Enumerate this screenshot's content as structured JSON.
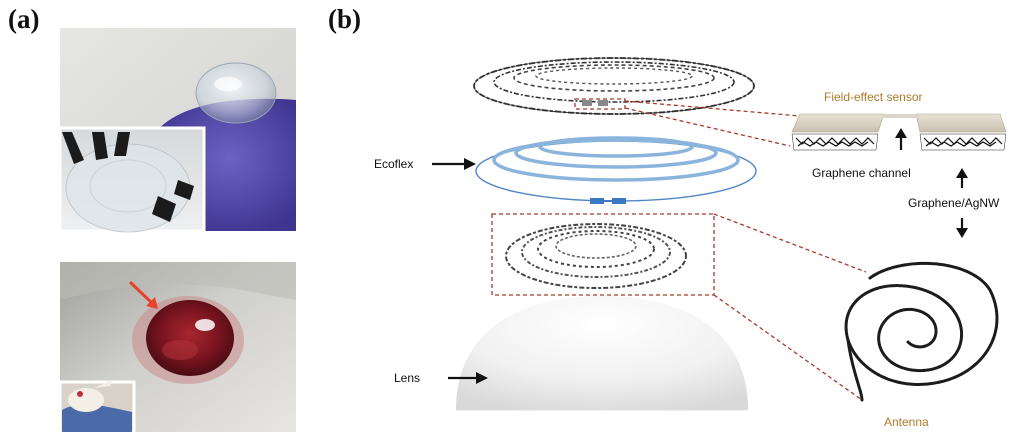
{
  "panels": {
    "a": "(a)",
    "b": "(b)"
  },
  "diagram": {
    "field_effect_sensor": "Field-effect sensor",
    "graphene_channel": "Graphene channel",
    "graphene_agnw": "Graphene/AgNW",
    "antenna": "Antenna",
    "ecoflex": "Ecoflex",
    "lens": "Lens"
  },
  "colors": {
    "ecoflex_ring": "#8ab4dc",
    "ecoflex_rim": "#4f86c6",
    "leader_dashed": "#a83a2a",
    "glove": "#5a4fb0",
    "eye_arrow": "#e8412c"
  }
}
